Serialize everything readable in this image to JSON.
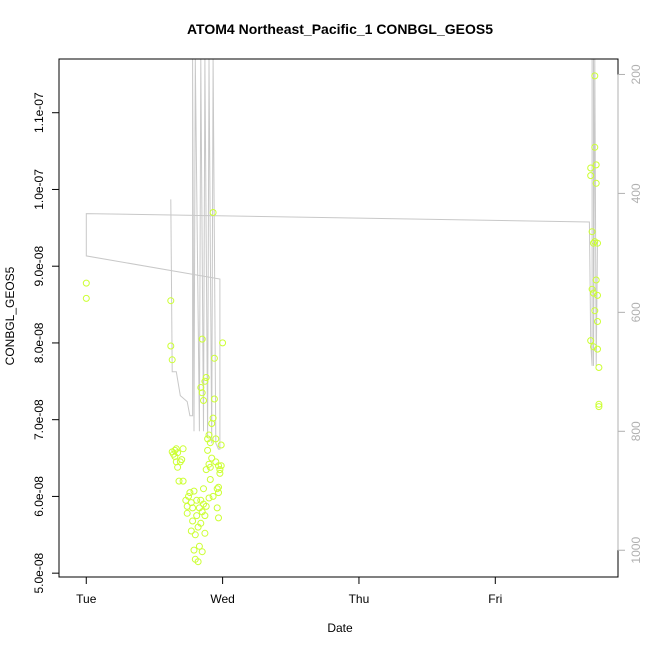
{
  "chart_data": {
    "type": "scatter",
    "title": "ATOM4 Northeast_Pacific_1 CONBGL_GEOS5",
    "xlabel": "Date",
    "ylabel": "CONBGL_GEOS5",
    "x_ticks": [
      "Tue",
      "Wed",
      "Thu",
      "Fri"
    ],
    "xlim": [
      -0.2,
      3.9
    ],
    "ylim": [
      4.95e-08,
      1.17e-07
    ],
    "y_ticks": [
      5e-08,
      6e-08,
      7e-08,
      8e-08,
      9e-08,
      1e-07,
      1.1e-07
    ],
    "y_tick_labels": [
      "5.0e-08",
      "6.0e-08",
      "7.0e-08",
      "8.0e-08",
      "9.0e-08",
      "1.0e-07",
      "1.1e-07"
    ],
    "y2_ticks": [
      200,
      400,
      600,
      800,
      1000
    ],
    "y2_tick_labels": [
      "200",
      "400",
      "600",
      "800",
      "1000"
    ],
    "y2_reversed": true,
    "y2lim_data_top": 174,
    "y2lim_data_bottom": 1045,
    "grid": false,
    "colors": {
      "points": "#ccff33",
      "pressure_line": "#c8c8c8",
      "right_axis": "#b0b0b0"
    },
    "series": [
      {
        "values": [
          [
            0.0,
            8.78e-08
          ],
          [
            0.0,
            8.58e-08
          ],
          [
            0.62,
            8.55e-08
          ],
          [
            0.62,
            7.96e-08
          ],
          [
            0.63,
            7.78e-08
          ],
          [
            0.63,
            6.58e-08
          ],
          [
            0.64,
            6.55e-08
          ],
          [
            0.65,
            6.6e-08
          ],
          [
            0.65,
            6.52e-08
          ],
          [
            0.66,
            6.45e-08
          ],
          [
            0.66,
            6.62e-08
          ],
          [
            0.67,
            6.57e-08
          ],
          [
            0.67,
            6.38e-08
          ],
          [
            0.68,
            6.2e-08
          ],
          [
            0.69,
            6.45e-08
          ],
          [
            0.7,
            6.48e-08
          ],
          [
            0.71,
            6.62e-08
          ],
          [
            0.71,
            6.2e-08
          ],
          [
            0.73,
            5.95e-08
          ],
          [
            0.74,
            5.87e-08
          ],
          [
            0.74,
            5.78e-08
          ],
          [
            0.75,
            6e-08
          ],
          [
            0.76,
            6.05e-08
          ],
          [
            0.77,
            5.92e-08
          ],
          [
            0.77,
            5.55e-08
          ],
          [
            0.78,
            5.85e-08
          ],
          [
            0.78,
            5.68e-08
          ],
          [
            0.79,
            6.07e-08
          ],
          [
            0.79,
            5.3e-08
          ],
          [
            0.8,
            5.5e-08
          ],
          [
            0.8,
            5.18e-08
          ],
          [
            0.81,
            5.95e-08
          ],
          [
            0.81,
            5.75e-08
          ],
          [
            0.82,
            5.6e-08
          ],
          [
            0.82,
            5.15e-08
          ],
          [
            0.83,
            5.85e-08
          ],
          [
            0.83,
            5.35e-08
          ],
          [
            0.84,
            5.95e-08
          ],
          [
            0.84,
            5.65e-08
          ],
          [
            0.85,
            5.8e-08
          ],
          [
            0.85,
            5.28e-08
          ],
          [
            0.86,
            6.1e-08
          ],
          [
            0.86,
            5.9e-08
          ],
          [
            0.87,
            5.75e-08
          ],
          [
            0.87,
            5.52e-08
          ],
          [
            0.88,
            5.87e-08
          ],
          [
            0.88,
            6.35e-08
          ],
          [
            0.84,
            7.42e-08
          ],
          [
            0.85,
            7.35e-08
          ],
          [
            0.85,
            8.05e-08
          ],
          [
            0.86,
            7.25e-08
          ],
          [
            0.87,
            7.5e-08
          ],
          [
            0.88,
            7.55e-08
          ],
          [
            0.89,
            6.75e-08
          ],
          [
            0.89,
            6.6e-08
          ],
          [
            0.9,
            6.8e-08
          ],
          [
            0.9,
            6.42e-08
          ],
          [
            0.91,
            6.7e-08
          ],
          [
            0.91,
            6.22e-08
          ],
          [
            0.92,
            6.95e-08
          ],
          [
            0.92,
            6.5e-08
          ],
          [
            0.93,
            6e-08
          ],
          [
            0.93,
            7.02e-08
          ],
          [
            0.93,
            9.7e-08
          ],
          [
            0.94,
            7.8e-08
          ],
          [
            0.94,
            7.27e-08
          ],
          [
            0.95,
            6.45e-08
          ],
          [
            0.95,
            6.75e-08
          ],
          [
            0.96,
            6.1e-08
          ],
          [
            0.96,
            5.85e-08
          ],
          [
            0.97,
            6.4e-08
          ],
          [
            0.97,
            6.05e-08
          ],
          [
            0.97,
            5.72e-08
          ],
          [
            0.98,
            6.35e-08
          ],
          [
            0.98,
            6.3e-08
          ],
          [
            0.99,
            6.4e-08
          ],
          [
            0.99,
            6.67e-08
          ],
          [
            1.0,
            8e-08
          ],
          [
            0.97,
            6.12e-08
          ],
          [
            0.9,
            5.98e-08
          ],
          [
            0.91,
            6.38e-08
          ],
          [
            3.7,
            1.028e-07
          ],
          [
            3.7,
            1.018e-07
          ],
          [
            3.71,
            9.45e-08
          ],
          [
            3.72,
            9.3e-08
          ],
          [
            3.72,
            8.65e-08
          ],
          [
            3.73,
            8.42e-08
          ],
          [
            3.73,
            1.148e-07
          ],
          [
            3.73,
            1.055e-07
          ],
          [
            3.74,
            1.032e-07
          ],
          [
            3.74,
            1.008e-07
          ],
          [
            3.74,
            8.82e-08
          ],
          [
            3.75,
            9.3e-08
          ],
          [
            3.75,
            8.62e-08
          ],
          [
            3.75,
            8.28e-08
          ],
          [
            3.75,
            7.92e-08
          ],
          [
            3.76,
            7.68e-08
          ],
          [
            3.76,
            7.2e-08
          ],
          [
            3.76,
            7.17e-08
          ],
          [
            3.7,
            8.03e-08
          ],
          [
            3.72,
            7.95e-08
          ],
          [
            3.71,
            8.7e-08
          ],
          [
            3.73,
            9.32e-08
          ]
        ]
      },
      {
        "axis": "right",
        "values": [
          [
            0.62,
            410
          ],
          [
            0.63,
            700
          ],
          [
            0.66,
            700
          ],
          [
            0.69,
            740
          ],
          [
            0.74,
            750
          ],
          [
            0.76,
            774
          ],
          [
            0.78,
            774
          ],
          [
            0.78,
            174
          ],
          [
            0.79,
            800
          ],
          [
            0.8,
            174
          ],
          [
            0.83,
            800
          ],
          [
            0.84,
            174
          ],
          [
            0.86,
            800
          ],
          [
            0.87,
            174
          ],
          [
            0.89,
            810
          ],
          [
            0.9,
            174
          ],
          [
            0.92,
            820
          ],
          [
            0.93,
            174
          ],
          [
            0.95,
            820
          ],
          [
            0.97,
            830
          ],
          [
            0.98,
            830
          ],
          [
            0.98,
            544
          ],
          [
            0.0,
            505
          ],
          [
            0.0,
            434
          ],
          [
            3.69,
            448
          ],
          [
            3.7,
            650
          ],
          [
            3.71,
            690
          ],
          [
            3.71,
            174
          ],
          [
            3.72,
            174
          ],
          [
            3.72,
            690
          ],
          [
            3.73,
            174
          ],
          [
            3.74,
            690
          ],
          [
            3.75,
            480
          ]
        ]
      }
    ]
  }
}
